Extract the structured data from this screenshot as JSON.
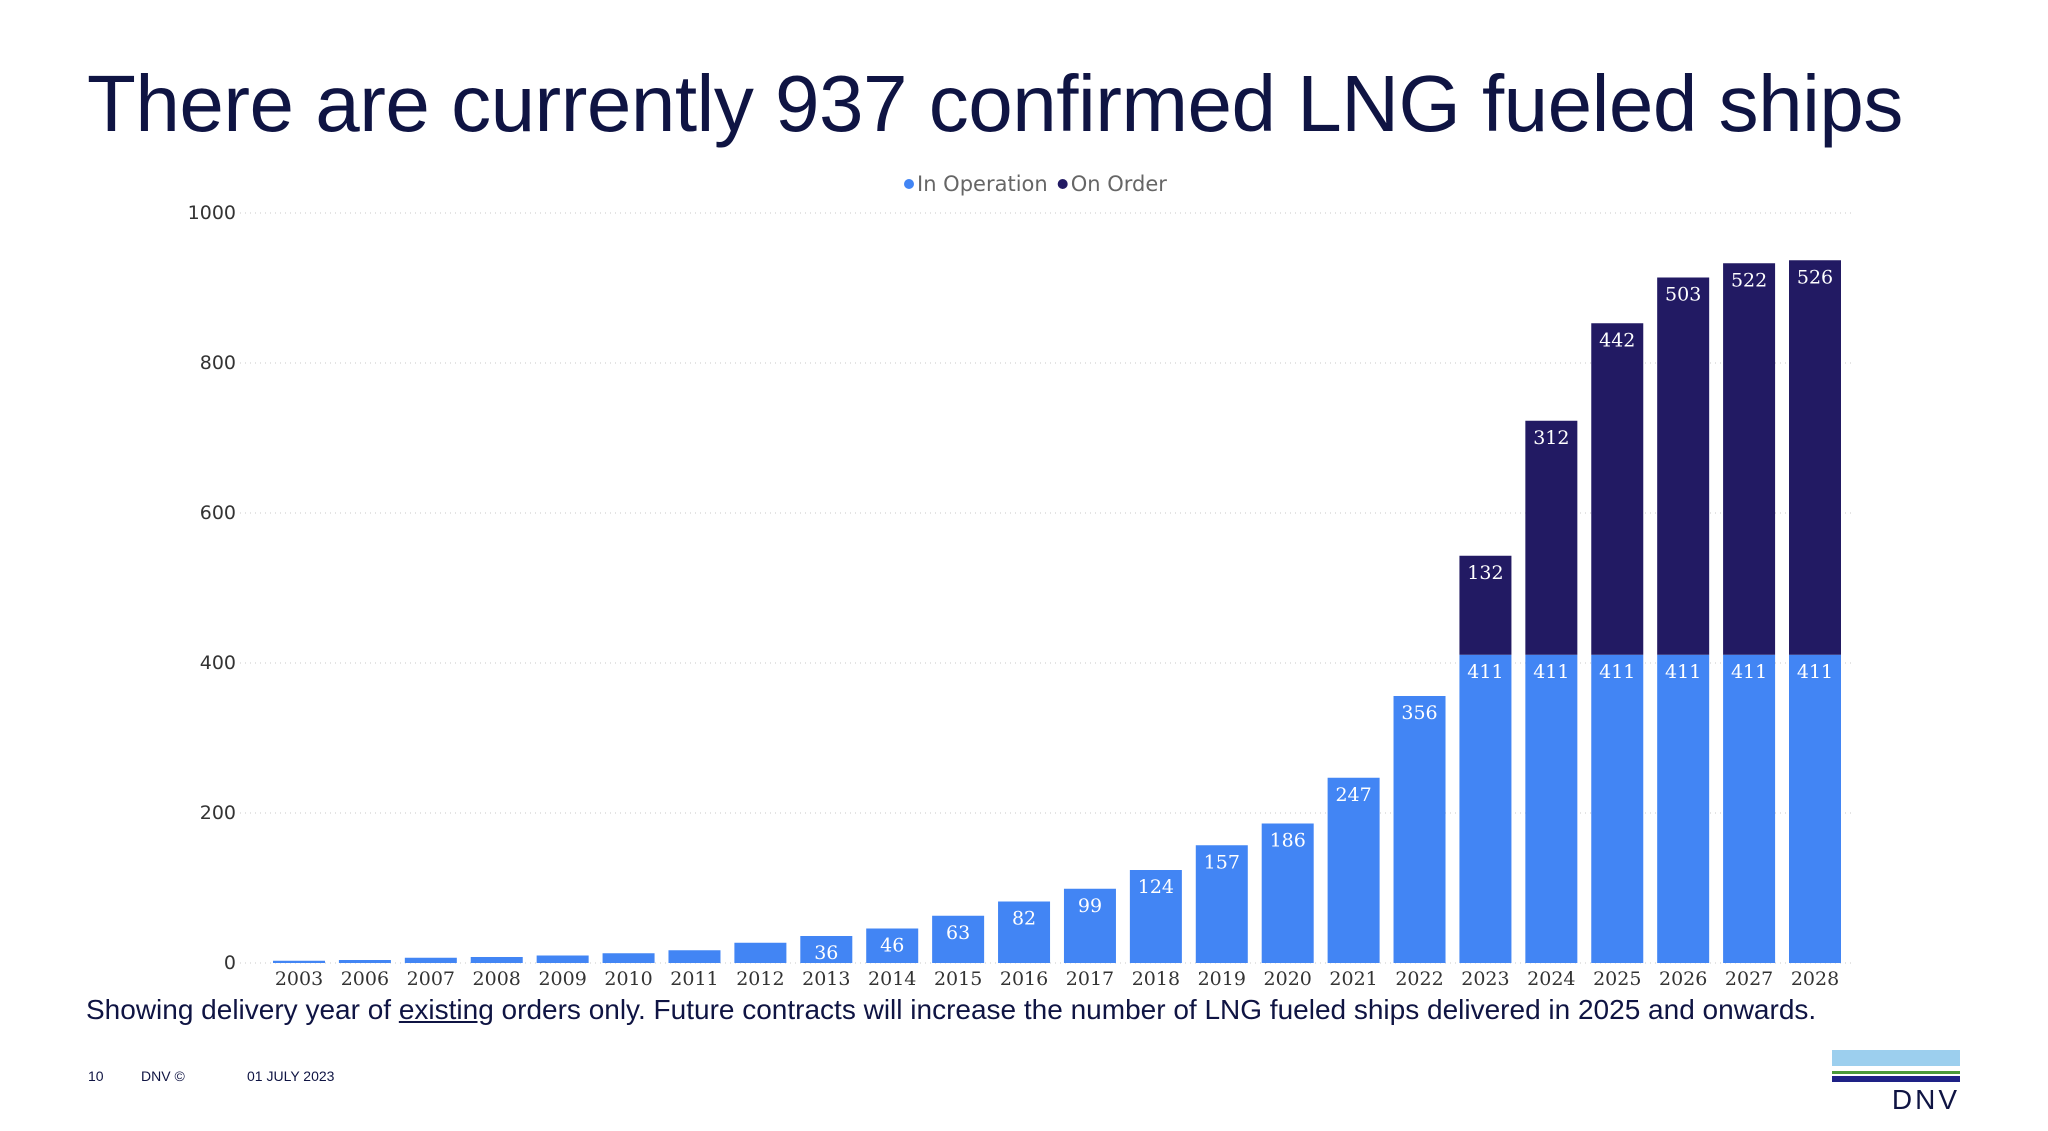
{
  "title": "There are currently 937 confirmed LNG fueled ships",
  "footnote": {
    "before": "Showing delivery year of ",
    "underlined": "existing",
    "after": " orders only. Future contracts will increase the number of LNG fueled ships delivered in 2025 and onwards."
  },
  "footer": {
    "page": "10",
    "copyright": "DNV ©",
    "date": "01 JULY 2023"
  },
  "logo": {
    "text": "DNV",
    "colors": [
      "#9ccfee",
      "#4a9a3a",
      "#1e2186"
    ]
  },
  "chart_data": {
    "type": "bar",
    "stacked": true,
    "categories": [
      "2003",
      "2006",
      "2007",
      "2008",
      "2009",
      "2010",
      "2011",
      "2012",
      "2013",
      "2014",
      "2015",
      "2016",
      "2017",
      "2018",
      "2019",
      "2020",
      "2021",
      "2022",
      "2023",
      "2024",
      "2025",
      "2026",
      "2027",
      "2028"
    ],
    "series": [
      {
        "name": "In Operation",
        "color": "#4285f4",
        "values": [
          3,
          4,
          7,
          8,
          10,
          13,
          17,
          27,
          36,
          46,
          63,
          82,
          99,
          124,
          157,
          186,
          247,
          356,
          411,
          411,
          411,
          411,
          411,
          411
        ]
      },
      {
        "name": "On Order",
        "color": "#221a63",
        "values": [
          0,
          0,
          0,
          0,
          0,
          0,
          0,
          0,
          0,
          0,
          0,
          0,
          0,
          0,
          0,
          0,
          0,
          0,
          132,
          312,
          442,
          503,
          522,
          526
        ]
      }
    ],
    "data_labels": {
      "In Operation": [
        "",
        "",
        "",
        "",
        "",
        "",
        "",
        "",
        "36",
        "46",
        "63",
        "82",
        "99",
        "124",
        "157",
        "186",
        "247",
        "356",
        "411",
        "411",
        "411",
        "411",
        "411",
        "411"
      ],
      "On Order": [
        "",
        "",
        "",
        "",
        "",
        "",
        "",
        "",
        "",
        "",
        "",
        "",
        "",
        "",
        "",
        "",
        "",
        "",
        "132",
        "312",
        "442",
        "503",
        "522",
        "526"
      ]
    },
    "ylim": [
      0,
      1000
    ],
    "yticks": [
      0,
      200,
      400,
      600,
      800,
      1000
    ],
    "grid": true,
    "legend": "top-center"
  }
}
